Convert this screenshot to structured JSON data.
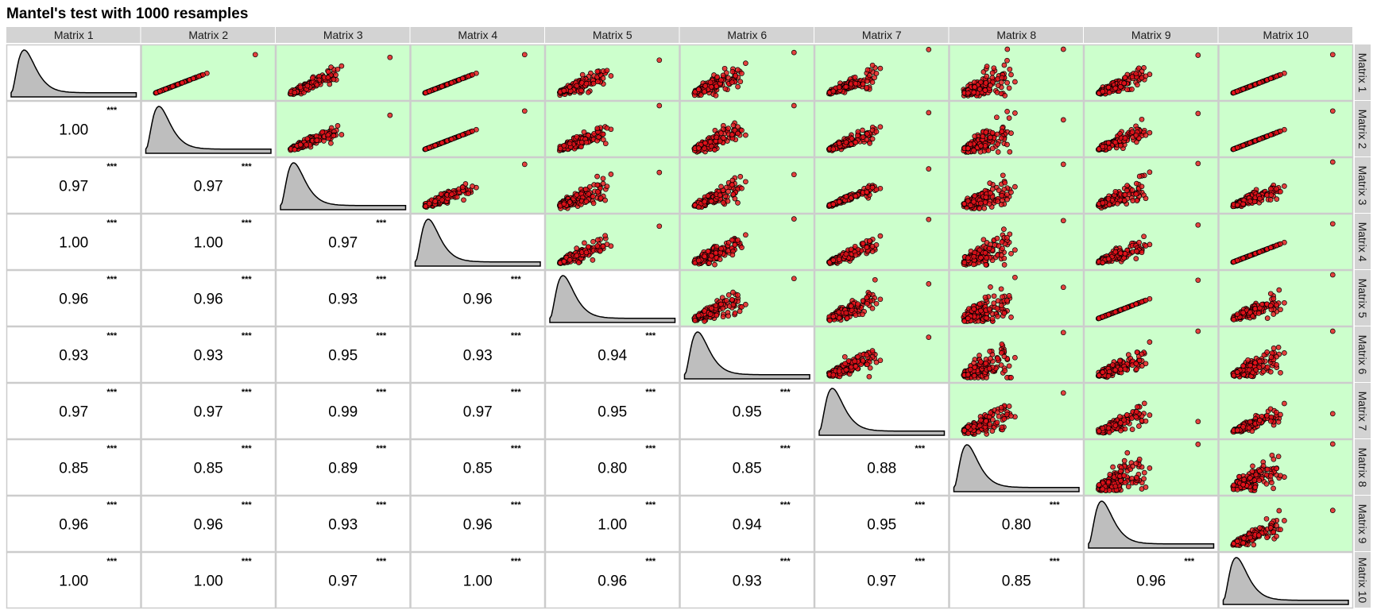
{
  "chart_data": {
    "type": "scatter",
    "title": "Mantel's test with 1000 resamples",
    "labels": [
      "Matrix 1",
      "Matrix 2",
      "Matrix 3",
      "Matrix 4",
      "Matrix 5",
      "Matrix 6",
      "Matrix 7",
      "Matrix 8",
      "Matrix 9",
      "Matrix 10"
    ],
    "lower_panel": "correlation coefficient with significance stars",
    "diagonal_panel": "density",
    "upper_panel": "scatter",
    "correlations": [
      [
        null,
        null,
        null,
        null,
        null,
        null,
        null,
        null,
        null,
        null
      ],
      [
        "1.00",
        null,
        null,
        null,
        null,
        null,
        null,
        null,
        null,
        null
      ],
      [
        "0.97",
        "0.97",
        null,
        null,
        null,
        null,
        null,
        null,
        null,
        null
      ],
      [
        "1.00",
        "1.00",
        "0.97",
        null,
        null,
        null,
        null,
        null,
        null,
        null
      ],
      [
        "0.96",
        "0.96",
        "0.93",
        "0.96",
        null,
        null,
        null,
        null,
        null,
        null
      ],
      [
        "0.93",
        "0.93",
        "0.95",
        "0.93",
        "0.94",
        null,
        null,
        null,
        null,
        null
      ],
      [
        "0.97",
        "0.97",
        "0.99",
        "0.97",
        "0.95",
        "0.95",
        null,
        null,
        null,
        null
      ],
      [
        "0.85",
        "0.85",
        "0.89",
        "0.85",
        "0.80",
        "0.85",
        "0.88",
        null,
        null,
        null
      ],
      [
        "0.96",
        "0.96",
        "0.93",
        "0.96",
        "1.00",
        "0.94",
        "0.95",
        "0.80",
        null,
        null
      ],
      [
        "1.00",
        "1.00",
        "0.97",
        "1.00",
        "0.96",
        "0.93",
        "0.97",
        "0.85",
        "0.96",
        null
      ]
    ],
    "significance": "***",
    "colors": {
      "scatter_panel_bg": "#ccffcc",
      "point_fill": "#e8121a",
      "point_stroke": "#000000",
      "density_fill": "#bebebe",
      "strip_bg": "#d3d3d3",
      "panel_border": "#cccccc"
    }
  }
}
